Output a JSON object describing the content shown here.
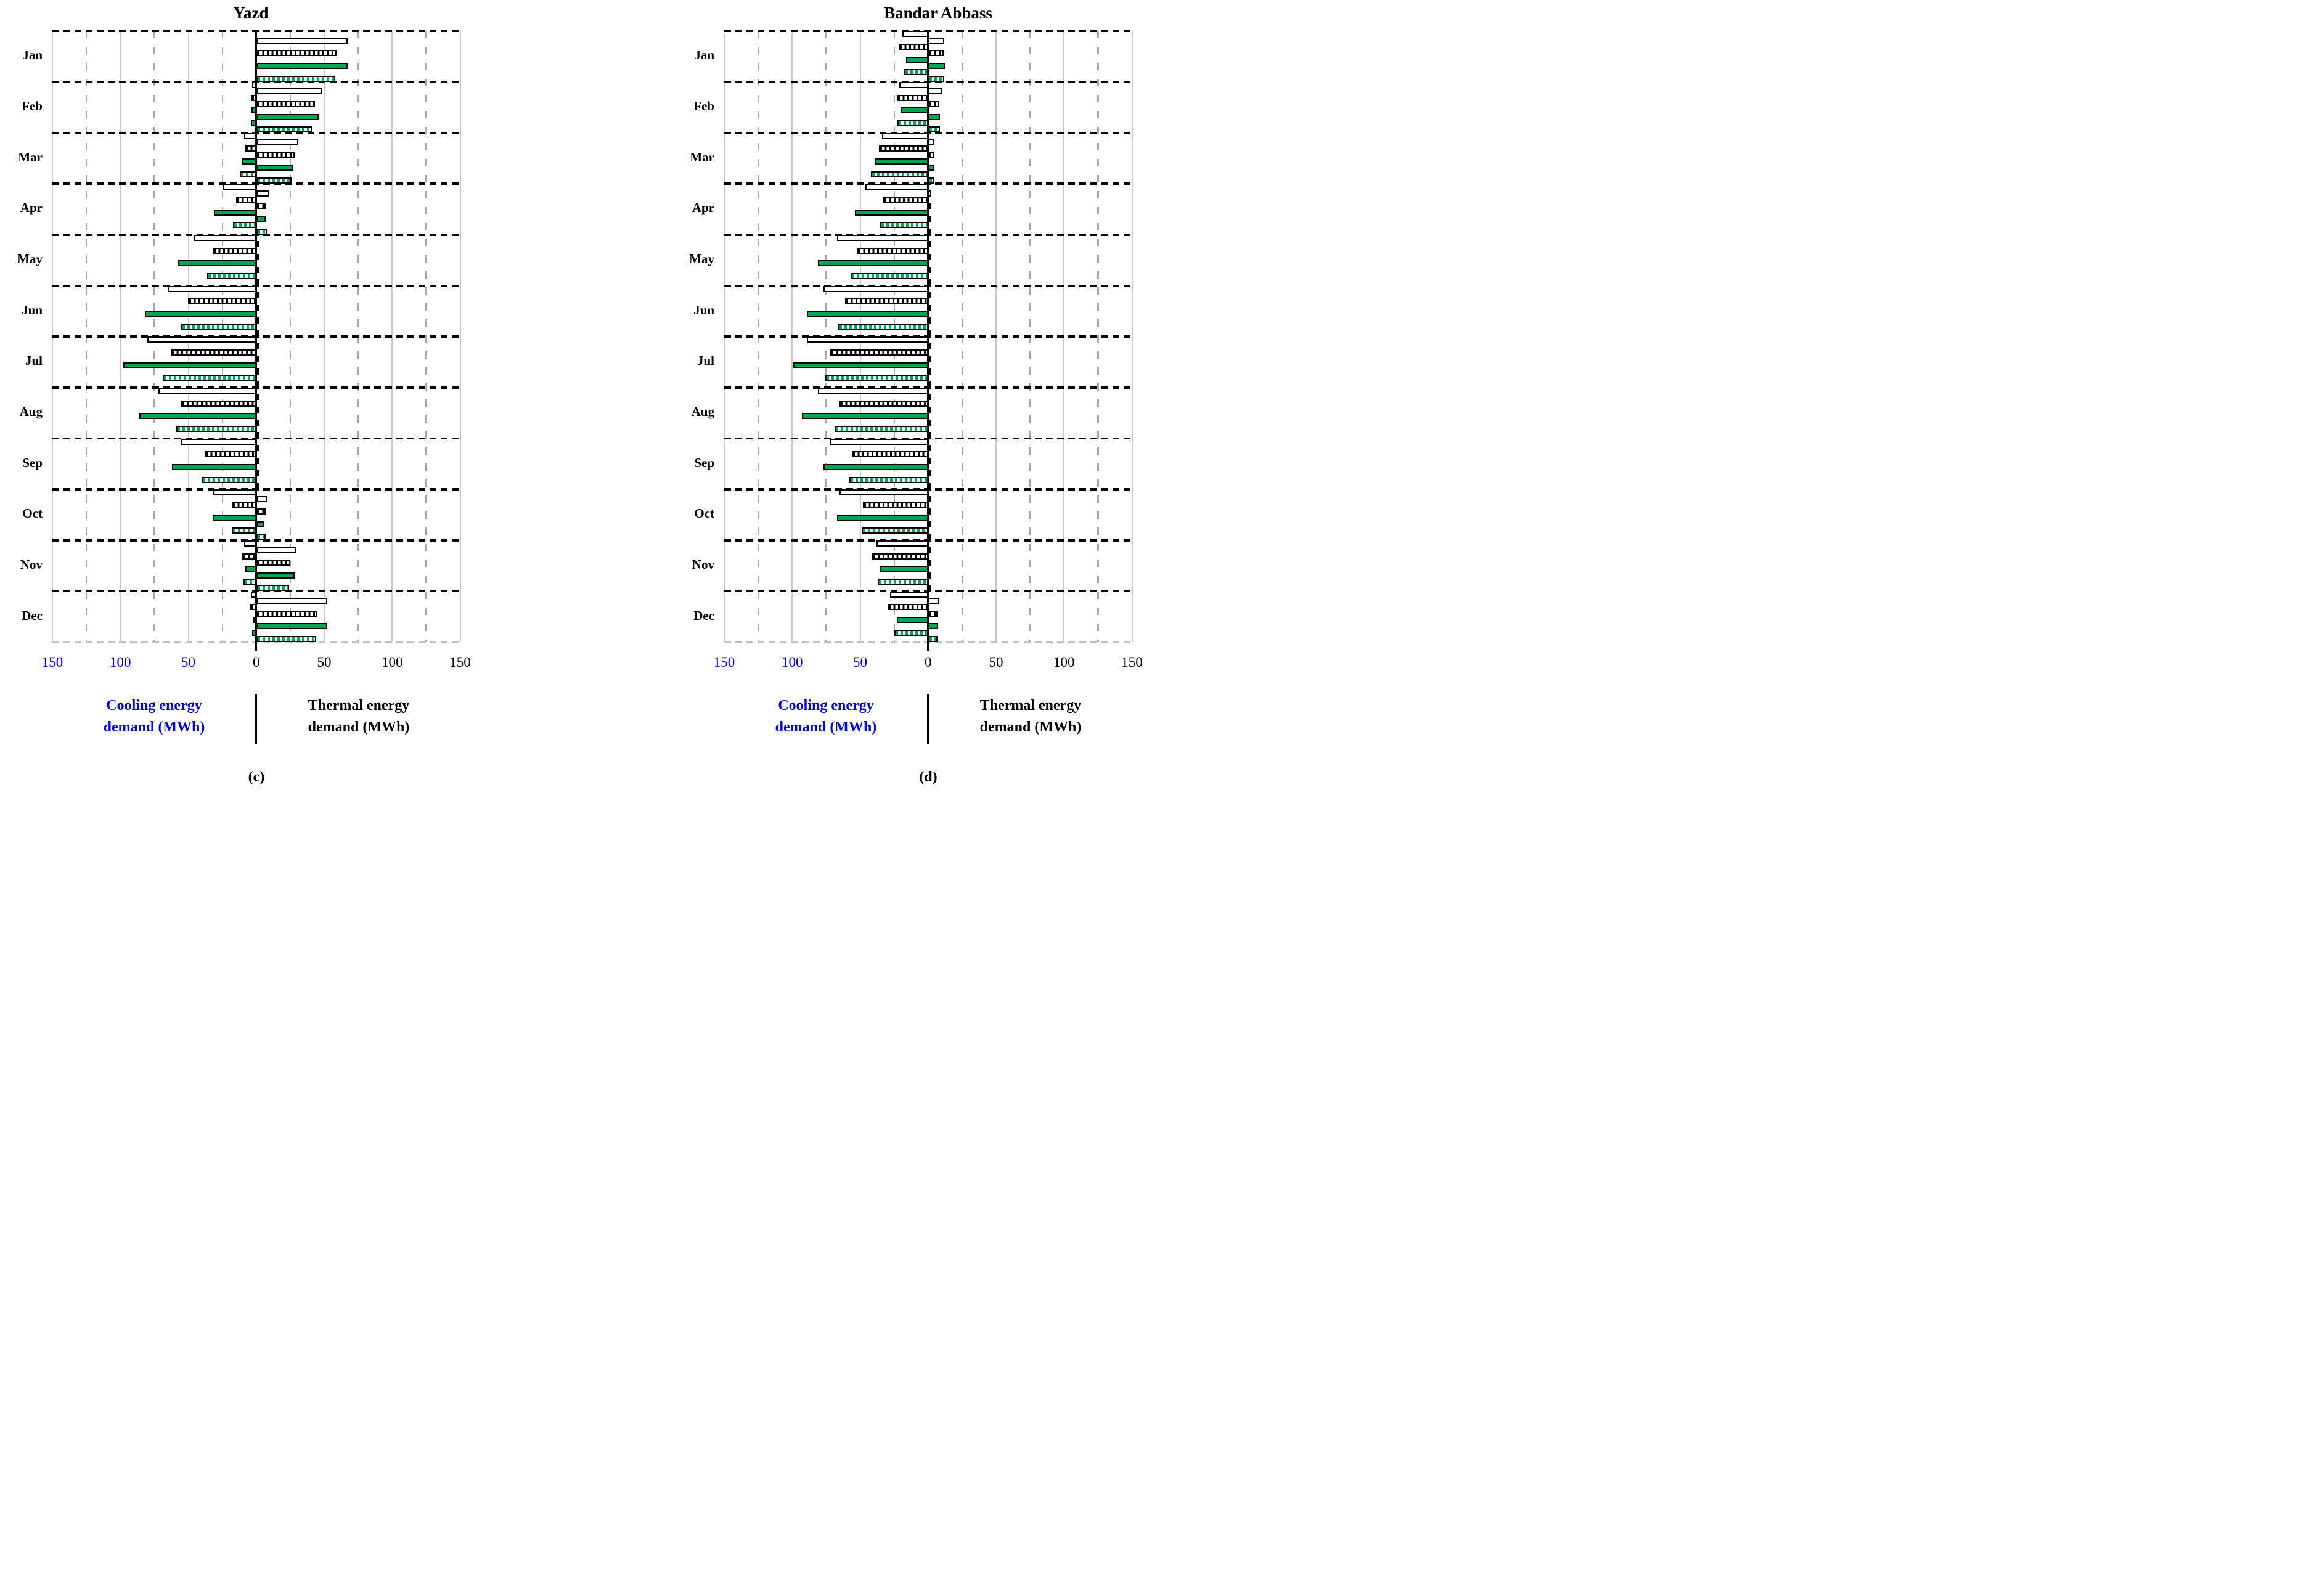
{
  "figure": {
    "colors": {
      "green": "#00A651",
      "blue_axis_text": "#0000EE",
      "bar_outline": "#000000"
    },
    "sub_labels": [
      "(c)",
      "(d)"
    ]
  },
  "chart_data": [
    {
      "type": "bar",
      "title": "Yazd",
      "sub_label": "(c)",
      "left_axis_label": "Cooling energy\ndemand (MWh)",
      "right_axis_label": "Thermal energy\ndemand (MWh)",
      "axis": {
        "xlim_left": 150,
        "xlim_right": 150,
        "tick_step": 50,
        "grid_minor_step": 25,
        "ticks": [
          {
            "label": "150",
            "value": -150,
            "side": "cooling"
          },
          {
            "label": "100",
            "value": -100,
            "side": "cooling"
          },
          {
            "label": "50",
            "value": -50,
            "side": "cooling"
          },
          {
            "label": "0",
            "value": 0,
            "side": "center"
          },
          {
            "label": "50",
            "value": 50,
            "side": "thermal"
          },
          {
            "label": "100",
            "value": 100,
            "side": "thermal"
          },
          {
            "label": "150",
            "value": 150,
            "side": "thermal"
          }
        ]
      },
      "months": [
        "Jan",
        "Feb",
        "Mar",
        "Apr",
        "May",
        "Jun",
        "Jul",
        "Aug",
        "Sep",
        "Oct",
        "Nov",
        "Dec"
      ],
      "series": [
        {
          "name": "solid-white",
          "pattern": "white",
          "cooling": [
            0,
            2,
            8,
            24,
            45,
            64,
            79,
            71,
            54,
            31,
            8,
            3
          ],
          "thermal": [
            66,
            47,
            30,
            8,
            1,
            0.5,
            0.5,
            0.5,
            1,
            7,
            28,
            51
          ]
        },
        {
          "name": "black-hatched",
          "pattern": "hatch-black",
          "cooling": [
            0,
            3,
            7.5,
            14,
            31,
            49,
            62,
            54,
            37,
            17,
            9.5,
            4
          ],
          "thermal": [
            58,
            42,
            27,
            6,
            1,
            0.5,
            0.5,
            0.5,
            1,
            6,
            24,
            44
          ]
        },
        {
          "name": "solid-green",
          "pattern": "green",
          "cooling": [
            0,
            2.5,
            9.5,
            30,
            57,
            81,
            97,
            85,
            61,
            31,
            7,
            1
          ],
          "thermal": [
            66,
            45,
            26,
            6,
            1,
            0.5,
            0.5,
            0.5,
            1,
            5,
            27,
            51
          ]
        },
        {
          "name": "green-hatched",
          "pattern": "hatch-green",
          "cooling": [
            0,
            3,
            11,
            16,
            35,
            54,
            68,
            58,
            39,
            17,
            8.5,
            2
          ],
          "thermal": [
            57,
            40,
            25,
            7,
            1,
            0.5,
            0.5,
            0.5,
            1,
            6,
            23,
            43
          ]
        }
      ]
    },
    {
      "type": "bar",
      "title": "Bandar Abbass",
      "sub_label": "(d)",
      "left_axis_label": "Cooling energy\ndemand (MWh)",
      "right_axis_label": "Thermal energy\ndemand (MWh)",
      "axis": {
        "xlim_left": 150,
        "xlim_right": 150,
        "tick_step": 50,
        "grid_minor_step": 25,
        "ticks": [
          {
            "label": "150",
            "value": -150,
            "side": "cooling"
          },
          {
            "label": "100",
            "value": -100,
            "side": "cooling"
          },
          {
            "label": "50",
            "value": -50,
            "side": "cooling"
          },
          {
            "label": "0",
            "value": 0,
            "side": "center"
          },
          {
            "label": "50",
            "value": 50,
            "side": "thermal"
          },
          {
            "label": "100",
            "value": 100,
            "side": "thermal"
          },
          {
            "label": "150",
            "value": 150,
            "side": "thermal"
          }
        ]
      },
      "months": [
        "Jan",
        "Feb",
        "Mar",
        "Apr",
        "May",
        "Jun",
        "Jul",
        "Aug",
        "Sep",
        "Oct",
        "Nov",
        "Dec"
      ],
      "series": [
        {
          "name": "solid-white",
          "pattern": "white",
          "cooling": [
            18,
            20,
            33,
            45,
            66,
            76,
            88,
            80,
            71,
            64,
            37,
            27
          ],
          "thermal": [
            11,
            9,
            3,
            1.5,
            0.5,
            0.5,
            0.5,
            0.5,
            0.5,
            0.5,
            0.5,
            7
          ]
        },
        {
          "name": "black-hatched",
          "pattern": "hatch-black",
          "cooling": [
            20.5,
            22,
            35,
            32,
            51,
            60,
            71,
            64,
            55,
            47,
            40,
            29
          ],
          "thermal": [
            10.5,
            7,
            3,
            1,
            0.5,
            0.5,
            0.5,
            0.5,
            0.5,
            0.5,
            0.5,
            6
          ]
        },
        {
          "name": "solid-green",
          "pattern": "green",
          "cooling": [
            15,
            19,
            38,
            53,
            80,
            88,
            98,
            92,
            76,
            66,
            34,
            22
          ],
          "thermal": [
            11.5,
            7.5,
            3,
            1,
            0.5,
            0.5,
            0.5,
            0.5,
            0.5,
            0.5,
            0.5,
            6.5
          ]
        },
        {
          "name": "green-hatched",
          "pattern": "hatch-green",
          "cooling": [
            16.5,
            21.5,
            41,
            34,
            56,
            65,
            74.5,
            68,
            57,
            48,
            36,
            24
          ],
          "thermal": [
            11,
            7.5,
            3,
            1,
            0.5,
            0.5,
            0.5,
            0.5,
            0.5,
            0.5,
            0.5,
            6
          ]
        }
      ]
    }
  ]
}
